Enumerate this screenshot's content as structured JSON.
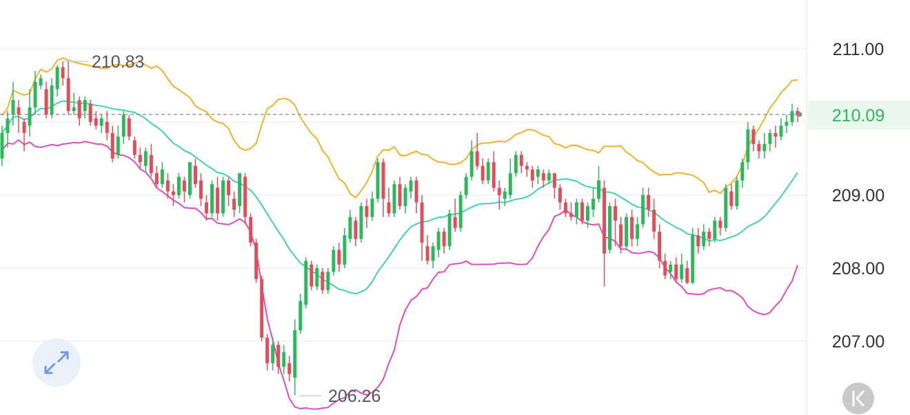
{
  "chart_data": {
    "type": "candlestick",
    "y_axis": {
      "ticks": [
        "211.00",
        "209.00",
        "208.00",
        "207.00"
      ],
      "range": [
        206.0,
        211.65
      ]
    },
    "current_price": {
      "label": "210.09",
      "value": 210.09
    },
    "high_marker": {
      "label": "210.83",
      "value": 210.83
    },
    "low_marker": {
      "label": "206.26",
      "value": 206.26
    },
    "colors": {
      "up": "#2eb85c",
      "down": "#e04e5a",
      "upper_band": "#f0b323",
      "middle_band": "#3fd3b0",
      "lower_band": "#e04ac0",
      "current_price": "#2eb85c"
    },
    "candles": [
      [
        209.5,
        209.85,
        209.95,
        209.4
      ],
      [
        209.85,
        210.05,
        210.15,
        209.65
      ],
      [
        210.1,
        210.3,
        210.55,
        209.95
      ],
      [
        210.2,
        210.1,
        210.3,
        209.85
      ],
      [
        210.0,
        209.85,
        210.05,
        209.6
      ],
      [
        209.95,
        210.2,
        210.45,
        209.8
      ],
      [
        210.2,
        210.55,
        210.7,
        210.1
      ],
      [
        210.5,
        210.6,
        210.65,
        210.45
      ],
      [
        210.45,
        210.1,
        210.55,
        210.05
      ],
      [
        210.1,
        210.5,
        210.6,
        210.05
      ],
      [
        210.45,
        210.75,
        210.78,
        210.35
      ],
      [
        210.75,
        210.6,
        210.83,
        210.5
      ],
      [
        210.6,
        210.15,
        210.83,
        210.1
      ],
      [
        210.15,
        210.2,
        210.4,
        210.1
      ],
      [
        210.3,
        210.05,
        210.35,
        209.95
      ],
      [
        210.15,
        210.3,
        210.35,
        210.05
      ],
      [
        210.25,
        210.0,
        210.3,
        209.95
      ],
      [
        210.05,
        209.95,
        210.15,
        209.9
      ],
      [
        209.95,
        210.05,
        210.1,
        209.85
      ],
      [
        210.0,
        209.85,
        210.15,
        209.75
      ],
      [
        209.85,
        209.5,
        209.95,
        209.45
      ],
      [
        209.55,
        209.8,
        209.95,
        209.5
      ],
      [
        209.8,
        210.1,
        210.15,
        209.7
      ],
      [
        210.05,
        209.8,
        210.1,
        209.75
      ],
      [
        209.75,
        209.55,
        209.8,
        209.5
      ],
      [
        209.55,
        209.45,
        209.65,
        209.35
      ],
      [
        209.4,
        209.6,
        209.65,
        209.3
      ],
      [
        209.55,
        209.3,
        209.7,
        209.25
      ],
      [
        209.3,
        209.15,
        209.4,
        209.1
      ],
      [
        209.15,
        209.35,
        209.45,
        209.1
      ],
      [
        209.2,
        209.05,
        209.3,
        208.95
      ],
      [
        209.05,
        209.0,
        209.15,
        208.85
      ],
      [
        209.0,
        209.25,
        209.3,
        208.95
      ],
      [
        209.2,
        209.05,
        209.25,
        208.9
      ],
      [
        209.0,
        209.45,
        209.45,
        208.95
      ],
      [
        209.4,
        209.15,
        209.5,
        209.1
      ],
      [
        209.2,
        208.95,
        209.3,
        208.85
      ],
      [
        208.9,
        208.75,
        209.0,
        208.65
      ],
      [
        208.75,
        209.15,
        209.2,
        208.7
      ],
      [
        209.1,
        208.75,
        209.25,
        208.65
      ],
      [
        208.75,
        209.2,
        209.25,
        208.7
      ],
      [
        209.2,
        209.0,
        209.25,
        208.85
      ],
      [
        208.95,
        208.8,
        209.05,
        208.7
      ],
      [
        208.85,
        209.3,
        209.3,
        208.75
      ],
      [
        209.25,
        208.7,
        209.3,
        208.6
      ],
      [
        208.7,
        208.35,
        208.75,
        208.3
      ],
      [
        208.35,
        207.85,
        208.4,
        207.8
      ],
      [
        207.85,
        207.05,
        207.9,
        207.0
      ],
      [
        207.05,
        206.7,
        207.1,
        206.6
      ],
      [
        206.7,
        206.95,
        207.05,
        206.6
      ],
      [
        206.95,
        206.65,
        207.0,
        206.55
      ],
      [
        206.65,
        206.85,
        206.95,
        206.55
      ],
      [
        206.7,
        206.55,
        206.8,
        206.45
      ],
      [
        206.5,
        207.15,
        207.3,
        206.26
      ],
      [
        207.15,
        207.55,
        207.65,
        207.1
      ],
      [
        207.5,
        208.1,
        208.15,
        207.45
      ],
      [
        208.05,
        207.75,
        208.1,
        207.7
      ],
      [
        207.75,
        208.0,
        208.05,
        207.7
      ],
      [
        207.95,
        207.7,
        208.0,
        207.65
      ],
      [
        207.7,
        207.95,
        208.0,
        207.65
      ],
      [
        207.95,
        208.25,
        208.3,
        207.9
      ],
      [
        208.25,
        208.05,
        208.35,
        207.95
      ],
      [
        208.05,
        208.45,
        208.55,
        208.0
      ],
      [
        208.4,
        208.7,
        208.8,
        208.35
      ],
      [
        208.65,
        208.4,
        208.7,
        208.3
      ],
      [
        208.4,
        208.85,
        208.9,
        208.35
      ],
      [
        208.85,
        208.7,
        208.95,
        208.55
      ],
      [
        208.7,
        208.95,
        209.05,
        208.65
      ],
      [
        208.95,
        209.45,
        209.5,
        208.9
      ],
      [
        209.45,
        208.95,
        209.5,
        208.7
      ],
      [
        208.9,
        208.75,
        209.1,
        208.7
      ],
      [
        208.75,
        209.15,
        209.2,
        208.7
      ],
      [
        209.15,
        208.85,
        209.25,
        208.8
      ],
      [
        208.85,
        209.1,
        209.15,
        208.75
      ],
      [
        209.05,
        209.2,
        209.25,
        208.95
      ],
      [
        209.2,
        208.9,
        209.25,
        208.75
      ],
      [
        208.9,
        208.35,
        209.0,
        208.1
      ],
      [
        208.3,
        208.1,
        208.45,
        208.05
      ],
      [
        208.1,
        208.3,
        208.35,
        208.0
      ],
      [
        208.25,
        208.5,
        208.55,
        208.15
      ],
      [
        208.5,
        208.3,
        208.55,
        208.2
      ],
      [
        208.3,
        208.75,
        208.8,
        208.25
      ],
      [
        208.7,
        208.55,
        208.95,
        208.5
      ],
      [
        208.55,
        209.0,
        209.05,
        208.5
      ],
      [
        209.0,
        209.25,
        209.3,
        208.95
      ],
      [
        209.25,
        209.6,
        209.75,
        209.2
      ],
      [
        209.6,
        209.4,
        209.85,
        209.35
      ],
      [
        209.4,
        209.2,
        209.5,
        209.15
      ],
      [
        209.2,
        209.45,
        209.5,
        209.15
      ],
      [
        209.45,
        209.1,
        209.6,
        209.05
      ],
      [
        209.1,
        209.0,
        209.2,
        208.8
      ],
      [
        208.95,
        209.05,
        209.1,
        208.85
      ],
      [
        209.0,
        209.3,
        209.5,
        208.95
      ],
      [
        209.3,
        209.55,
        209.6,
        209.25
      ],
      [
        209.55,
        209.4,
        209.6,
        209.3
      ],
      [
        209.4,
        209.35,
        209.45,
        209.25
      ],
      [
        209.35,
        209.2,
        209.4,
        209.1
      ],
      [
        209.25,
        209.35,
        209.4,
        209.15
      ],
      [
        209.3,
        209.2,
        209.35,
        209.1
      ],
      [
        209.2,
        209.3,
        209.35,
        209.15
      ],
      [
        209.3,
        209.1,
        209.3,
        208.95
      ],
      [
        209.1,
        208.9,
        209.15,
        208.8
      ],
      [
        208.9,
        208.75,
        208.95,
        208.7
      ],
      [
        208.75,
        208.7,
        208.9,
        208.65
      ],
      [
        208.7,
        208.9,
        208.95,
        208.6
      ],
      [
        208.9,
        208.65,
        208.95,
        208.6
      ],
      [
        208.65,
        208.85,
        208.9,
        208.55
      ],
      [
        208.8,
        208.95,
        209.1,
        208.7
      ],
      [
        208.95,
        209.2,
        209.4,
        208.9
      ],
      [
        209.1,
        208.2,
        209.2,
        207.75
      ],
      [
        208.25,
        208.85,
        208.9,
        208.2
      ],
      [
        208.85,
        208.65,
        208.95,
        208.3
      ],
      [
        208.6,
        208.3,
        208.7,
        208.2
      ],
      [
        208.3,
        208.7,
        208.75,
        208.25
      ],
      [
        208.7,
        208.4,
        208.8,
        208.3
      ],
      [
        208.4,
        208.6,
        208.7,
        208.3
      ],
      [
        208.6,
        209.0,
        209.1,
        208.55
      ],
      [
        209.0,
        208.8,
        209.1,
        208.7
      ],
      [
        208.8,
        208.5,
        208.95,
        208.4
      ],
      [
        208.5,
        208.1,
        208.6,
        208.0
      ],
      [
        208.1,
        207.9,
        208.2,
        207.85
      ],
      [
        207.95,
        208.05,
        208.1,
        207.85
      ],
      [
        208.05,
        207.85,
        208.15,
        207.8
      ],
      [
        207.85,
        208.05,
        208.2,
        207.8
      ],
      [
        208.0,
        207.8,
        208.1,
        207.78
      ],
      [
        207.8,
        208.45,
        208.55,
        207.78
      ],
      [
        208.45,
        208.3,
        208.55,
        208.2
      ],
      [
        208.3,
        208.5,
        208.6,
        208.25
      ],
      [
        208.5,
        208.4,
        208.55,
        208.3
      ],
      [
        208.4,
        208.65,
        208.7,
        208.35
      ],
      [
        208.65,
        208.55,
        208.7,
        208.45
      ],
      [
        208.55,
        209.1,
        209.15,
        208.5
      ],
      [
        209.05,
        208.85,
        209.15,
        208.8
      ],
      [
        208.85,
        209.2,
        209.25,
        208.8
      ],
      [
        209.2,
        209.45,
        209.5,
        209.1
      ],
      [
        209.45,
        209.9,
        210.0,
        209.35
      ],
      [
        209.9,
        209.7,
        209.95,
        209.6
      ],
      [
        209.7,
        209.6,
        209.75,
        209.5
      ],
      [
        209.6,
        209.7,
        209.85,
        209.5
      ],
      [
        209.7,
        209.85,
        209.9,
        209.6
      ],
      [
        209.85,
        209.8,
        209.95,
        209.65
      ],
      [
        209.8,
        209.95,
        210.05,
        209.75
      ],
      [
        209.95,
        210.0,
        210.1,
        209.85
      ],
      [
        210.0,
        210.15,
        210.25,
        209.95
      ],
      [
        210.15,
        210.09,
        210.2,
        210.0
      ]
    ]
  },
  "controls": {
    "expand_icon": "expand-icon",
    "collapse_icon": "collapse-left-icon"
  }
}
